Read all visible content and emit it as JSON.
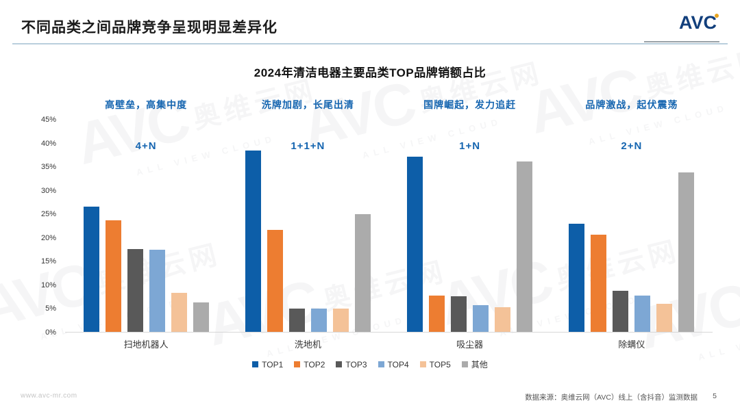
{
  "header": {
    "title": "不同品类之间品牌竞争呈现明显差异化",
    "logo_text": "AVC"
  },
  "chart_data": {
    "type": "bar",
    "title": "2024年清洁电器主要品类TOP品牌销额占比",
    "categories": [
      "扫地机器人",
      "洗地机",
      "吸尘器",
      "除螨仪"
    ],
    "series": [
      {
        "name": "TOP1",
        "color": "#0d5ea8",
        "values": [
          26.5,
          38.5,
          37.2,
          23.0
        ]
      },
      {
        "name": "TOP2",
        "color": "#ed7d31",
        "values": [
          23.7,
          21.6,
          7.7,
          20.6
        ]
      },
      {
        "name": "TOP3",
        "color": "#595959",
        "values": [
          17.6,
          5.0,
          7.6,
          8.7
        ]
      },
      {
        "name": "TOP4",
        "color": "#7da7d4",
        "values": [
          17.4,
          4.9,
          5.6,
          7.7
        ]
      },
      {
        "name": "TOP5",
        "color": "#f4c298",
        "values": [
          8.3,
          5.0,
          5.3,
          5.9
        ]
      },
      {
        "name": "其他",
        "color": "#ababab",
        "values": [
          6.3,
          25.0,
          36.2,
          33.8
        ]
      }
    ],
    "annotations": [
      {
        "headline": "高壁垒，高集中度",
        "pattern": "4+N"
      },
      {
        "headline": "洗牌加剧，长尾出清",
        "pattern": "1+1+N"
      },
      {
        "headline": "国牌崛起，发力追赶",
        "pattern": "1+N"
      },
      {
        "headline": "品牌激战，起伏震荡",
        "pattern": "2+N"
      }
    ],
    "ylim": [
      0,
      45
    ],
    "y_tick_step": 5,
    "y_tick_suffix": "%",
    "grid": false,
    "legend_position": "bottom"
  },
  "footer": {
    "url": "www.avc-mr.com",
    "source": "数据来源：奥维云网（AVC）线上（含抖音）监测数据",
    "page_number": "5"
  },
  "watermark": {
    "avc": "AVC",
    "cn": "奥维云网",
    "en": "ALL VIEW CLOUD"
  }
}
